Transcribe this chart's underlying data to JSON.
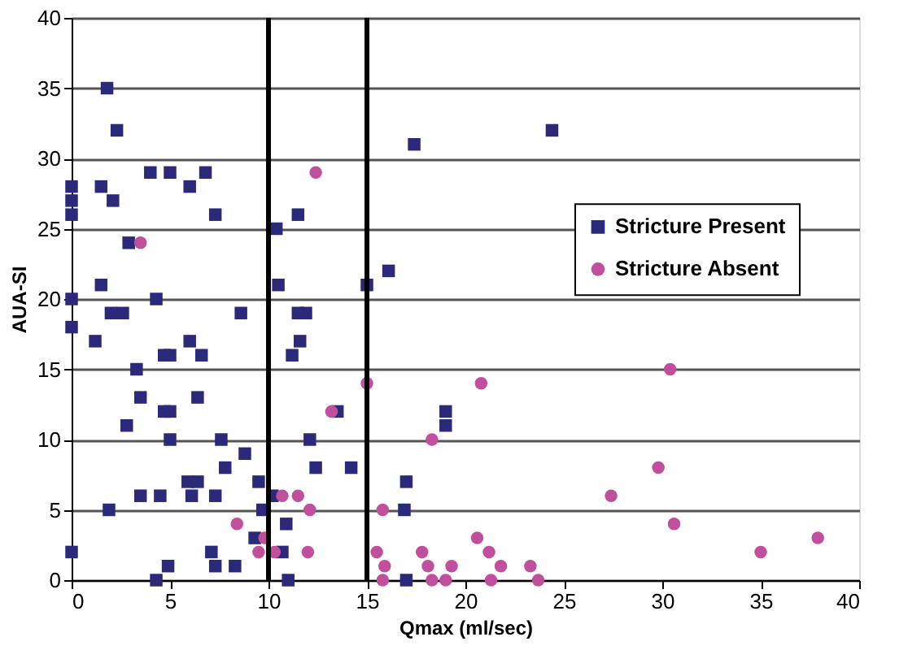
{
  "chart_data": {
    "type": "scatter",
    "xlabel": "Qmax (ml/sec)",
    "ylabel": "AUA-SI",
    "xlim": [
      0,
      40
    ],
    "ylim": [
      0,
      40
    ],
    "xticks": [
      0,
      5,
      10,
      15,
      20,
      25,
      30,
      35,
      40
    ],
    "yticks": [
      0,
      5,
      10,
      15,
      20,
      25,
      30,
      35,
      40
    ],
    "grid": "y",
    "legend": "right",
    "series": [
      {
        "name": "Stricture Present",
        "color": "#2b2a7a",
        "marker": "square",
        "x": [
          1.8,
          2.3,
          0,
          0,
          0,
          1.5,
          2.1,
          4,
          5,
          6.8,
          6,
          7.3,
          2.9,
          1.5,
          0,
          4.3,
          2,
          2.6,
          8.6,
          0,
          1.2,
          6,
          4.7,
          5,
          6.6,
          3.3,
          3.5,
          6.4,
          4.7,
          5,
          2.8,
          5,
          7.6,
          8.8,
          7.8,
          5.9,
          6.4,
          9.5,
          3.5,
          4.5,
          6.1,
          7.3,
          1.9,
          9.7,
          0,
          7.1,
          4.9,
          7.3,
          8.3,
          4.3,
          9.3,
          11.5,
          10.4,
          17.4,
          24.4,
          10.5,
          15,
          16.1,
          11.5,
          11.9,
          11.6,
          11.2,
          13.5,
          19,
          19,
          12.1,
          12.4,
          14.2,
          17,
          10.2,
          16.9,
          10.9,
          10.7,
          11,
          17
        ],
        "values": [
          35,
          32,
          28,
          27,
          26,
          28,
          27,
          29,
          29,
          29,
          28,
          26,
          24,
          21,
          20,
          20,
          19,
          19,
          19,
          18,
          17,
          17,
          16,
          16,
          16,
          15,
          13,
          13,
          12,
          12,
          11,
          10,
          10,
          9,
          8,
          7,
          7,
          7,
          6,
          6,
          6,
          6,
          5,
          5,
          2,
          2,
          1,
          1,
          1,
          0,
          3,
          26,
          25,
          31,
          32,
          21,
          21,
          22,
          19,
          19,
          17,
          16,
          12,
          12,
          11,
          10,
          8,
          8,
          7,
          6,
          5,
          4,
          2,
          0,
          0
        ]
      },
      {
        "name": "Stricture Absent",
        "color": "#c0509e",
        "marker": "circle",
        "x": [
          3.5,
          12.4,
          15,
          20.8,
          13.2,
          18.3,
          10.7,
          11.5,
          12.1,
          15.8,
          9.8,
          20.6,
          9.5,
          10.3,
          12,
          15.5,
          17.8,
          21.2,
          15.9,
          18.1,
          19.3,
          21.8,
          23.3,
          15.8,
          18.3,
          19,
          21.3,
          23.7,
          8.4,
          30.4,
          29.8,
          27.4,
          30.6,
          35,
          37.9
        ],
        "values": [
          24,
          29,
          14,
          14,
          12,
          10,
          6,
          6,
          5,
          5,
          3,
          3,
          2,
          2,
          2,
          2,
          2,
          2,
          1,
          1,
          1,
          1,
          1,
          0,
          0,
          0,
          0,
          0,
          4,
          15,
          8,
          6,
          4,
          2,
          3
        ]
      }
    ],
    "ref_lines": [
      {
        "axis": "x",
        "value": 10,
        "color": "#000000"
      },
      {
        "axis": "x",
        "value": 15,
        "color": "#000000"
      }
    ]
  }
}
